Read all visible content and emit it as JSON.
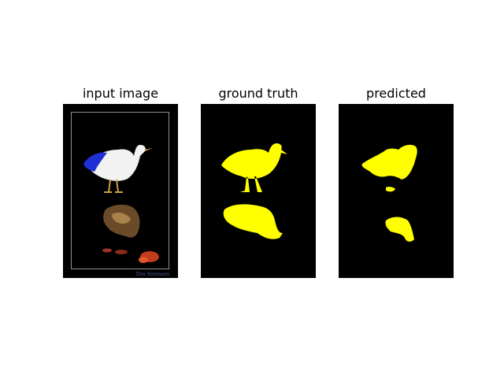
{
  "figure": {
    "panels": [
      {
        "title": "input image"
      },
      {
        "title": "ground truth"
      },
      {
        "title": "predicted"
      }
    ],
    "input_image": {
      "signature": "Tom Sorensen"
    },
    "colors": {
      "background": "#000000",
      "mask": "#ffff00",
      "frame_border": "#8a8f9a"
    }
  }
}
